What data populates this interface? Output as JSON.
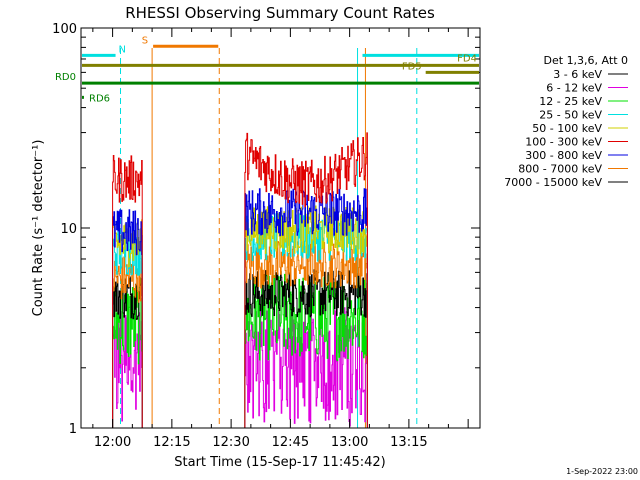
{
  "chart_data": {
    "type": "line",
    "title": "RHESSI Observing Summary Count Rates",
    "xlabel": "Start Time (15-Sep-17 11:45:42)",
    "ylabel": "Count Rate (s⁻¹ detector⁻¹)",
    "y_scale": "log",
    "ylim": [
      1,
      100
    ],
    "xlim_minutes": [
      -8,
      93
    ],
    "x_ticks": [
      {
        "t": 0,
        "label": "12:00"
      },
      {
        "t": 15,
        "label": "12:15"
      },
      {
        "t": 30,
        "label": "12:30"
      },
      {
        "t": 45,
        "label": "12:45"
      },
      {
        "t": 60,
        "label": "13:00"
      },
      {
        "t": 75,
        "label": "13:15"
      }
    ],
    "y_ticks": [
      {
        "v": 1,
        "label": "1"
      },
      {
        "v": 10,
        "label": "10"
      },
      {
        "v": 100,
        "label": "100"
      }
    ],
    "legend_header": "Det 1,3,6, Att 0",
    "legend_placement": "right",
    "series": [
      {
        "name": "3 - 6 keV",
        "color": "#000000",
        "seg1": 4.6,
        "seg2": 4.7
      },
      {
        "name": "6 - 12 keV",
        "color": "#e000e0",
        "seg1": 2.5,
        "seg2": 2.5
      },
      {
        "name": "12 - 25 keV",
        "color": "#00e000",
        "seg1": 3.4,
        "seg2": 3.6
      },
      {
        "name": "25 - 50 keV",
        "color": "#00e0e0",
        "seg1": 7.6,
        "seg2": 9.0
      },
      {
        "name": "50 - 100 keV",
        "color": "#d0d000",
        "seg1": 8.4,
        "seg2": 9.8
      },
      {
        "name": "100 - 300 keV",
        "color": "#e00000",
        "seg1": 17.5,
        "seg2": 19.5
      },
      {
        "name": "300 - 800 keV",
        "color": "#0000e0",
        "seg1": 9.5,
        "seg2": 12.0
      },
      {
        "name": "800 - 7000 keV",
        "color": "#f07800",
        "seg1": 5.6,
        "seg2": 6.6
      },
      {
        "name": "7000 - 15000 keV",
        "color": "#000000",
        "seg1": 0,
        "seg2": 0
      }
    ],
    "data_segments": [
      {
        "t_start": 0,
        "t_end": 7.5
      },
      {
        "t_start": 33.5,
        "t_end": 64.5
      }
    ],
    "flags": [
      {
        "label": "N",
        "color": "#00e0e0",
        "t_start": -8,
        "t_end": 1,
        "y": 73
      },
      {
        "label": "N",
        "color": "#00e0e0",
        "t_start": 63,
        "t_end": 93,
        "y": 73
      },
      {
        "label": "S",
        "color": "#f07800",
        "t_start": 10,
        "t_end": 27,
        "y": 81
      },
      {
        "label": "FD4",
        "color": "#808000",
        "t_start": -8,
        "t_end": 93,
        "y": 65
      },
      {
        "label": "FD5",
        "color": "#808000",
        "t_start": 79,
        "t_end": 93,
        "y": 60
      },
      {
        "label": "RD0",
        "color": "#008000",
        "t_start": -8,
        "t_end": 93,
        "y": 53
      },
      {
        "label": "RD6",
        "color": "#008000",
        "t_start": -8,
        "t_end": -7,
        "y": 45
      }
    ],
    "vlines": [
      {
        "t": -8,
        "color": "#00e0e0",
        "dash": false
      },
      {
        "t": 2,
        "color": "#00e0e0",
        "dash": true
      },
      {
        "t": 10,
        "color": "#f07800",
        "dash": false
      },
      {
        "t": 27,
        "color": "#f07800",
        "dash": true
      },
      {
        "t": 62,
        "color": "#00e0e0",
        "dash": false
      },
      {
        "t": 64,
        "color": "#f07800",
        "dash": false
      },
      {
        "t": 77,
        "color": "#00e0e0",
        "dash": true
      }
    ],
    "footer": "1-Sep-2022 23:00"
  }
}
